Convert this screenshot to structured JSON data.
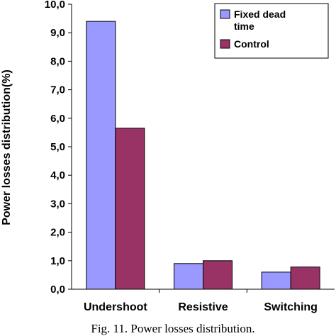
{
  "chart_data": {
    "type": "bar",
    "categories": [
      "Undershoot",
      "Resistive",
      "Switching"
    ],
    "series": [
      {
        "name": "Fixed dead time",
        "legend_lines": [
          "Fixed dead",
          "time"
        ],
        "color": "#9999ff",
        "values": [
          9.4,
          0.9,
          0.6
        ]
      },
      {
        "name": "Control",
        "legend_lines": [
          "Control"
        ],
        "color": "#993366",
        "values": [
          5.65,
          1.0,
          0.78
        ]
      }
    ],
    "ylabel": "Power losses distribution(%)",
    "ylim": [
      0,
      10
    ],
    "yticks": [
      "0,0",
      "1,0",
      "2,0",
      "3,0",
      "4,0",
      "5,0",
      "6,0",
      "7,0",
      "8,0",
      "9,0",
      "10,0"
    ],
    "grid": false,
    "legend_position": "top-right",
    "caption": "Fig. 11.  Power losses distribution."
  }
}
